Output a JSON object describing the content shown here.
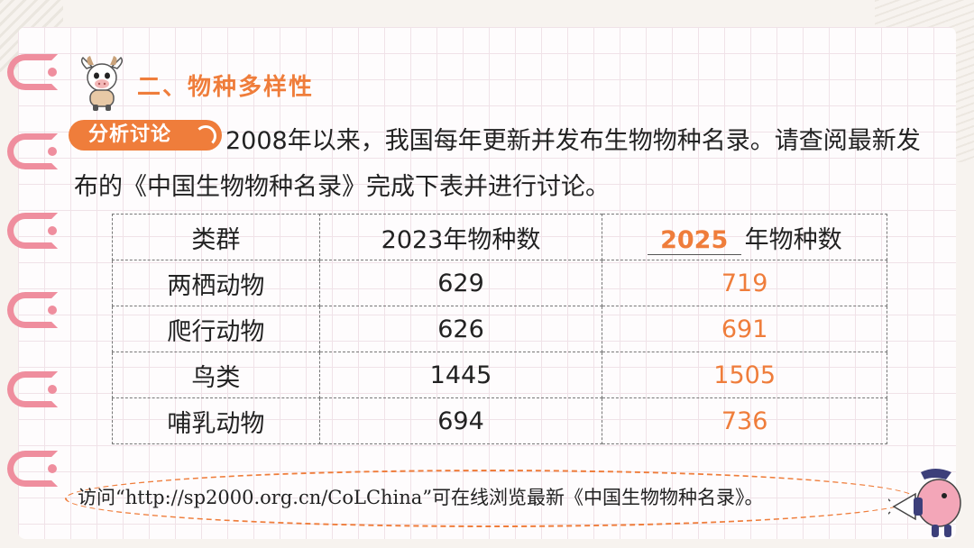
{
  "header": {
    "section_title": "二、物种多样性"
  },
  "discussion": {
    "tag_label": "分析讨论",
    "paragraph": "2008年以来，我国每年更新并发布生物物种名录。请查阅最新发布的《中国生物物种名录》完成下表并进行讨论。"
  },
  "table": {
    "headers": {
      "group": "类群",
      "year_2023": "2023年物种数",
      "fill_year": "2025",
      "fill_suffix": "年物种数"
    },
    "rows": [
      {
        "group": "两栖动物",
        "count_2023": "629",
        "count_new": "719"
      },
      {
        "group": "爬行动物",
        "count_2023": "626",
        "count_new": "691"
      },
      {
        "group": "鸟类",
        "count_2023": "1445",
        "count_new": "1505"
      },
      {
        "group": "哺乳动物",
        "count_2023": "694",
        "count_new": "736"
      }
    ]
  },
  "note": {
    "text": "访问“http://sp2000.org.cn/CoLChina”可在线浏览最新《中国生物物种名录》。"
  },
  "colors": {
    "accent": "#ef7d3b",
    "ring": "#ef8e9e",
    "grid": "#f0e2e8"
  }
}
